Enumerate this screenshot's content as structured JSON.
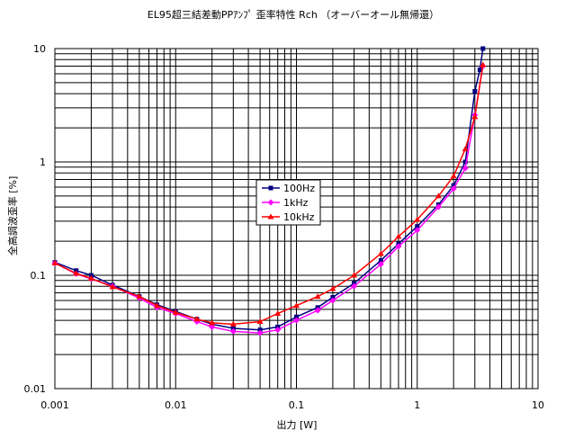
{
  "chart_data": {
    "type": "line",
    "title": "EL95超三結差動PPｱﾝﾌﾟ 歪率特性 Rch （オーバーオール無帰還）",
    "xlabel": "出力 [W]",
    "ylabel": "全高調波歪率 [%]",
    "xscale": "log",
    "yscale": "log",
    "xlim": [
      0.001,
      10
    ],
    "ylim": [
      0.01,
      10
    ],
    "grid": true,
    "legend_position": "center",
    "x_tick_labels": [
      "0.001",
      "0.01",
      "0.1",
      "1",
      "10"
    ],
    "y_tick_labels": [
      "0.01",
      "0.1",
      "1",
      "10"
    ],
    "series": [
      {
        "name": "100Hz",
        "color": "#000080",
        "marker": "square",
        "x": [
          0.001,
          0.0015,
          0.002,
          0.003,
          0.005,
          0.007,
          0.01,
          0.015,
          0.02,
          0.03,
          0.05,
          0.07,
          0.1,
          0.15,
          0.2,
          0.3,
          0.5,
          0.7,
          1,
          1.5,
          2,
          2.5,
          3,
          3.3,
          3.5
        ],
        "y": [
          0.13,
          0.11,
          0.1,
          0.082,
          0.065,
          0.055,
          0.048,
          0.041,
          0.037,
          0.034,
          0.033,
          0.035,
          0.043,
          0.052,
          0.064,
          0.085,
          0.135,
          0.19,
          0.27,
          0.42,
          0.62,
          1.0,
          4.2,
          6.5,
          10
        ]
      },
      {
        "name": "1kHz",
        "color": "#ff00ff",
        "marker": "diamond",
        "x": [
          0.001,
          0.0015,
          0.002,
          0.003,
          0.005,
          0.007,
          0.01,
          0.015,
          0.02,
          0.03,
          0.05,
          0.07,
          0.1,
          0.15,
          0.2,
          0.3,
          0.5,
          0.7,
          1,
          1.5,
          2,
          2.5,
          3,
          3.5
        ],
        "y": [
          0.128,
          0.103,
          0.093,
          0.08,
          0.063,
          0.052,
          0.046,
          0.039,
          0.035,
          0.032,
          0.031,
          0.033,
          0.04,
          0.049,
          0.06,
          0.08,
          0.125,
          0.18,
          0.25,
          0.4,
          0.58,
          0.88,
          2.6,
          7.0
        ]
      },
      {
        "name": "10kHz",
        "color": "#ff0000",
        "marker": "triangle",
        "x": [
          0.001,
          0.0015,
          0.002,
          0.003,
          0.005,
          0.007,
          0.01,
          0.015,
          0.02,
          0.03,
          0.05,
          0.07,
          0.1,
          0.15,
          0.2,
          0.3,
          0.5,
          0.7,
          1,
          1.5,
          2,
          2.5,
          3,
          3.5
        ],
        "y": [
          0.128,
          0.104,
          0.094,
          0.079,
          0.065,
          0.054,
          0.047,
          0.041,
          0.038,
          0.037,
          0.039,
          0.046,
          0.054,
          0.065,
          0.076,
          0.1,
          0.155,
          0.22,
          0.31,
          0.5,
          0.75,
          1.3,
          2.5,
          7.2
        ]
      }
    ]
  }
}
